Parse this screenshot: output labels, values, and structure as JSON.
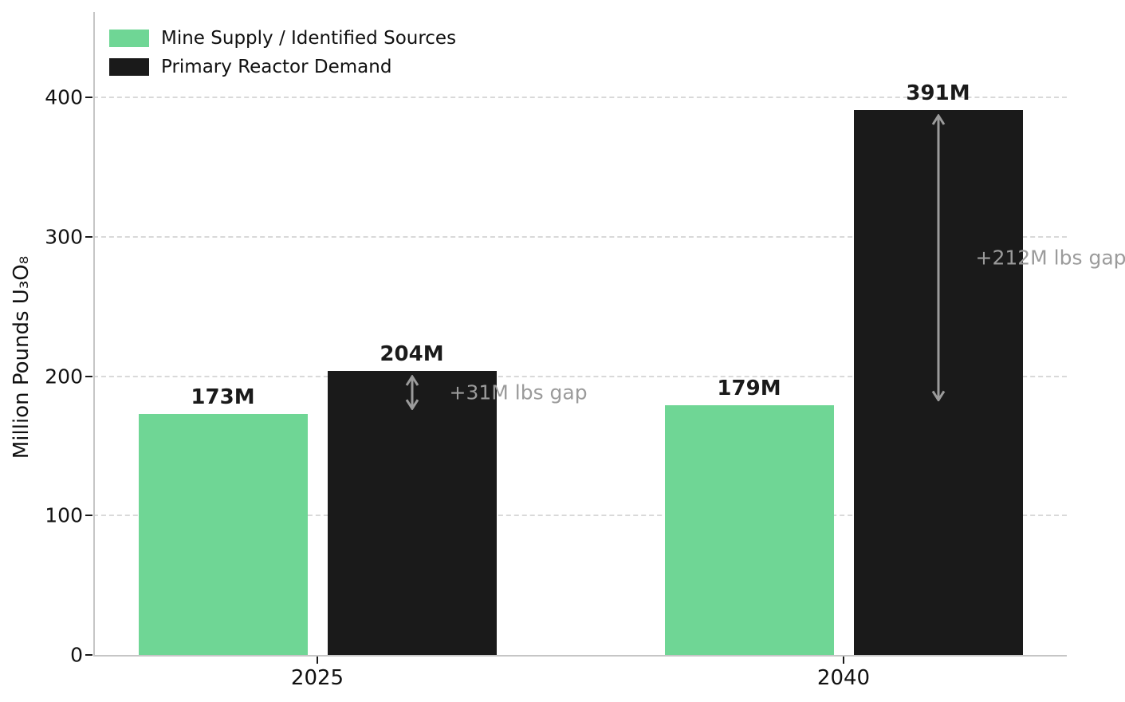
{
  "chart_data": {
    "type": "bar",
    "title": "",
    "categories": [
      "2025",
      "2040"
    ],
    "series": [
      {
        "name": "Mine Supply / Identified Sources",
        "key": "supply",
        "values": [
          173,
          179
        ],
        "labels": [
          "173M",
          "179M"
        ],
        "color": "#6fd695"
      },
      {
        "name": "Primary Reactor Demand",
        "key": "demand",
        "values": [
          204,
          391
        ],
        "labels": [
          "204M",
          "391M"
        ],
        "color": "#1a1a1a"
      }
    ],
    "xlabel": "",
    "ylabel": "Million Pounds U₃O₈",
    "yticks": [
      0,
      100,
      200,
      300,
      400
    ],
    "ylim": [
      0,
      460
    ],
    "grid": "horizontal-dashed",
    "legend_position": "upper-left",
    "annotations": [
      {
        "text": "+31M lbs gap",
        "category_index": 0,
        "from_value": 173,
        "to_value": 204
      },
      {
        "text": "+212M lbs gap",
        "category_index": 1,
        "from_value": 179,
        "to_value": 391
      }
    ]
  },
  "colors": {
    "supply_green": "#6fd695",
    "demand_black": "#1a1a1a",
    "gridline": "#d9d9d9",
    "spine": "#c6c6c6",
    "tick_text": "#111111",
    "bar_label_text": "#1a1a1a",
    "annotation_gray": "#9b9b9b",
    "background": "#ffffff"
  }
}
